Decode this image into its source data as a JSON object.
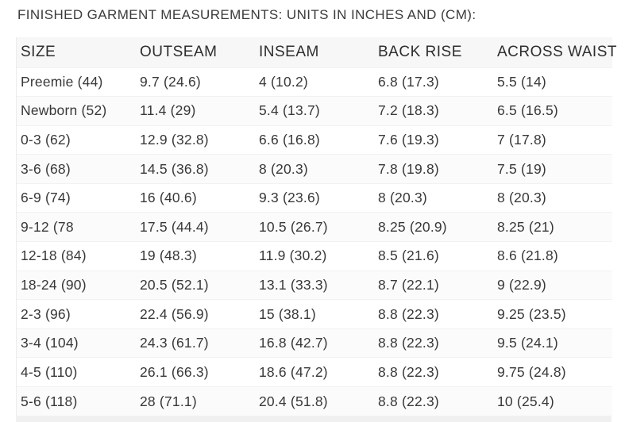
{
  "page": {
    "title": "FINISHED GARMENT MEASUREMENTS: UNITS IN INCHES AND (CM):"
  },
  "colors": {
    "text": "#383838",
    "header_background": "#f7f7f7",
    "alt_row_background": "#fbfbfb",
    "divider": "#f2f2f2"
  },
  "table": {
    "headers": [
      "SIZE",
      "OUTSEAM",
      "INSEAM",
      "BACK RISE",
      "ACROSS WAIST"
    ],
    "column_keys": [
      "size",
      "outseam",
      "inseam",
      "back-rise",
      "across-waist"
    ],
    "rows": [
      {
        "cells": [
          "Preemie (44)",
          "9.7 (24.6)",
          "4 (10.2)",
          "6.8 (17.3)",
          "5.5 (14)"
        ]
      },
      {
        "cells": [
          "Newborn (52)",
          "11.4 (29)",
          "5.4 (13.7)",
          "7.2 (18.3)",
          "6.5 (16.5)"
        ]
      },
      {
        "cells": [
          "0-3 (62)",
          "12.9 (32.8)",
          "6.6 (16.8)",
          "7.6 (19.3)",
          "7 (17.8)"
        ]
      },
      {
        "cells": [
          "3-6 (68)",
          "14.5 (36.8)",
          "8 (20.3)",
          "7.8 (19.8)",
          "7.5 (19)"
        ]
      },
      {
        "cells": [
          "6-9 (74)",
          "16 (40.6)",
          "9.3 (23.6)",
          "8 (20.3)",
          "8 (20.3)"
        ]
      },
      {
        "cells": [
          "9-12 (78",
          "17.5 (44.4)",
          "10.5 (26.7)",
          "8.25 (20.9)",
          "8.25 (21)"
        ]
      },
      {
        "cells": [
          "12-18 (84)",
          "19 (48.3)",
          "11.9 (30.2)",
          "8.5 (21.6)",
          "8.6 (21.8)"
        ]
      },
      {
        "cells": [
          "18-24 (90)",
          "20.5 (52.1)",
          "13.1 (33.3)",
          "8.7 (22.1)",
          "9 (22.9)"
        ]
      },
      {
        "cells": [
          "2-3 (96)",
          "22.4 (56.9)",
          "15 (38.1)",
          "8.8 (22.3)",
          "9.25 (23.5)"
        ]
      },
      {
        "cells": [
          "3-4 (104)",
          "24.3 (61.7)",
          "16.8 (42.7)",
          "8.8 (22.3)",
          "9.5 (24.1)"
        ]
      },
      {
        "cells": [
          "4-5 (110)",
          "26.1 (66.3)",
          "18.6 (47.2)",
          "8.8 (22.3)",
          "9.75 (24.8)"
        ]
      },
      {
        "cells": [
          "5-6 (118)",
          "28 (71.1)",
          "20.4 (51.8)",
          "8.8 (22.3)",
          "10 (25.4)"
        ]
      }
    ]
  }
}
